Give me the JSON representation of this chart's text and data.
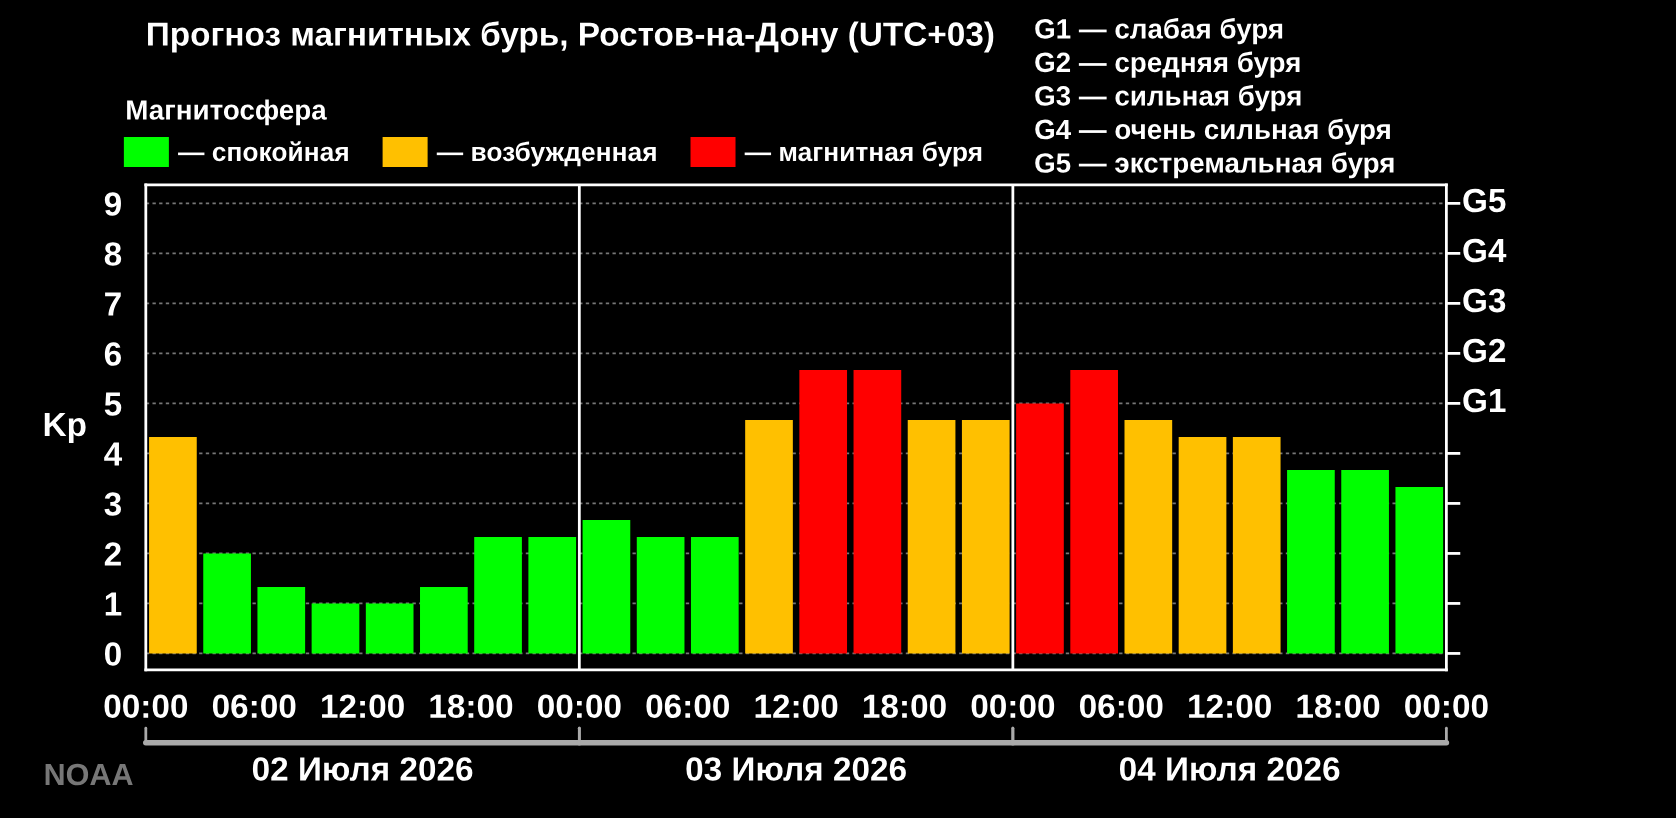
{
  "chart_data": {
    "type": "bar",
    "title": "Прогноз магнитных бурь, Ростов-на-Дону (UTC+03)",
    "ylabel": "Kp",
    "legend_title": "Магнитосфера",
    "legend": "top left",
    "grid": "y",
    "x": [
      "2026-07-02T01:30",
      "2026-07-02T04:30",
      "2026-07-02T07:30",
      "2026-07-02T10:30",
      "2026-07-02T13:30",
      "2026-07-02T16:30",
      "2026-07-02T19:30",
      "2026-07-02T22:30",
      "2026-07-03T01:30",
      "2026-07-03T04:30",
      "2026-07-03T07:30",
      "2026-07-03T10:30",
      "2026-07-03T13:30",
      "2026-07-03T16:30",
      "2026-07-03T19:30",
      "2026-07-03T22:30",
      "2026-07-04T01:30",
      "2026-07-04T04:30",
      "2026-07-04T07:30",
      "2026-07-04T10:30",
      "2026-07-04T13:30",
      "2026-07-04T16:30",
      "2026-07-04T19:30",
      "2026-07-04T22:30"
    ],
    "series": [
      {
        "name": "— спокойная",
        "color": "#00ff00",
        "values": [
          null,
          2.0,
          1.33,
          1.0,
          1.0,
          1.33,
          2.33,
          2.33,
          2.67,
          2.33,
          2.33,
          null,
          null,
          null,
          null,
          null,
          null,
          null,
          null,
          null,
          null,
          3.67,
          3.67,
          3.33
        ]
      },
      {
        "name": "— возбужденная",
        "color": "#ffc000",
        "values": [
          4.33,
          null,
          null,
          null,
          null,
          null,
          null,
          null,
          null,
          null,
          null,
          4.67,
          null,
          null,
          4.67,
          4.67,
          null,
          null,
          4.67,
          4.33,
          4.33,
          null,
          null,
          null
        ]
      },
      {
        "name": "— магнитная буря",
        "color": "#ff0000",
        "values": [
          null,
          null,
          null,
          null,
          null,
          null,
          null,
          null,
          null,
          null,
          null,
          null,
          5.67,
          5.67,
          null,
          null,
          5.0,
          5.67,
          null,
          null,
          null,
          null,
          null,
          null
        ]
      }
    ],
    "xlim": [
      "2026-07-02T00:00",
      "2026-07-05T00:00"
    ],
    "xticks": [
      {
        "value": "2026-07-02T00:00",
        "label": "00:00"
      },
      {
        "value": "2026-07-02T06:00",
        "label": "06:00"
      },
      {
        "value": "2026-07-02T12:00",
        "label": "12:00"
      },
      {
        "value": "2026-07-02T18:00",
        "label": "18:00"
      },
      {
        "value": "2026-07-03T00:00",
        "label": "00:00"
      },
      {
        "value": "2026-07-03T06:00",
        "label": "06:00"
      },
      {
        "value": "2026-07-03T12:00",
        "label": "12:00"
      },
      {
        "value": "2026-07-03T18:00",
        "label": "18:00"
      },
      {
        "value": "2026-07-04T00:00",
        "label": "00:00"
      },
      {
        "value": "2026-07-04T06:00",
        "label": "06:00"
      },
      {
        "value": "2026-07-04T12:00",
        "label": "12:00"
      },
      {
        "value": "2026-07-04T18:00",
        "label": "18:00"
      },
      {
        "value": "2026-07-05T00:00",
        "label": "00:00"
      }
    ],
    "ylim": [
      -0.33,
      9.37
    ],
    "yticks": [
      0,
      1,
      2,
      3,
      4,
      5,
      6,
      7,
      8,
      9
    ],
    "ref_lines": [
      {
        "axis": "x",
        "value": "2026-07-03T00:00",
        "color": "#ffffff"
      },
      {
        "axis": "x",
        "value": "2026-07-04T00:00",
        "color": "#ffffff"
      }
    ],
    "annotations": [
      "NOAA",
      "02 Июля 2026",
      "03 Июля 2026",
      "04 Июля 2026",
      "G1 — слабая буря",
      "G2 — средняя буря",
      "G3 — сильная буря",
      "G4 — очень сильная буря",
      "G5 — экстремальная буря",
      "G1",
      "G2",
      "G3",
      "G4",
      "G5"
    ]
  }
}
